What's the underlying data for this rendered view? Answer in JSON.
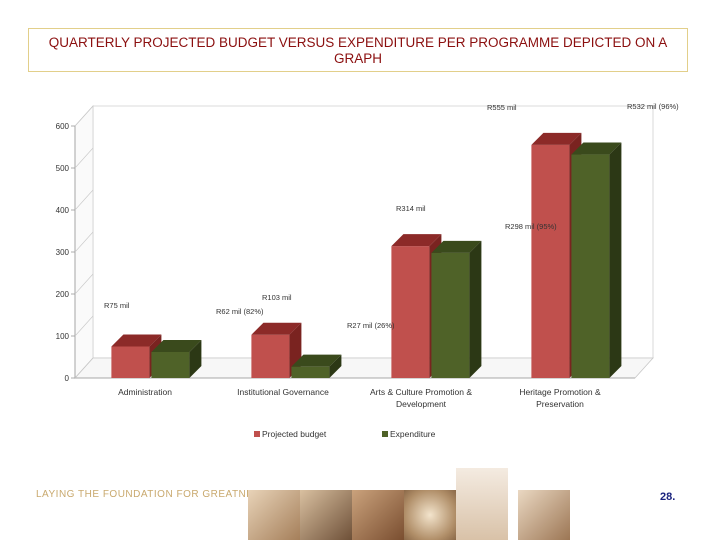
{
  "title": "QUARTERLY PROJECTED BUDGET VERSUS EXPENDITURE PER PROGRAMME DEPICTED ON A GRAPH",
  "footer": {
    "tagline": "LAYING THE FOUNDATION FOR GREATNESS",
    "page_number": "28."
  },
  "colors": {
    "projected": "#c0504d",
    "projected_top": "#8c2a28",
    "projected_side": "#7a2320",
    "expenditure": "#4f6228",
    "expenditure_top": "#3a4a1c",
    "expenditure_side": "#2c3815",
    "title_text": "#8b0f0f",
    "title_border": "#e2cf8a"
  },
  "chart_data": {
    "type": "bar",
    "categories": [
      "Administration",
      "Institutional Governance",
      "Arts & Culture Promotion & Development",
      "Heritage Promotion & Preservation"
    ],
    "series": [
      {
        "name": "Projected budget",
        "values": [
          75,
          103,
          314,
          555
        ],
        "labels": [
          "R75 mil",
          "R103 mil",
          "R314 mil",
          "R555 mil"
        ]
      },
      {
        "name": "Expenditure",
        "values": [
          62,
          27,
          298,
          532
        ],
        "labels": [
          "R62 mil (82%)",
          "R27 mil (26%)",
          "R298 mil (95%)",
          "R532 mil (96%)"
        ]
      }
    ],
    "yticks": [
      0,
      100,
      200,
      300,
      400,
      500,
      600
    ],
    "ylim": [
      0,
      600
    ],
    "grid": false,
    "legend": "bottom"
  }
}
